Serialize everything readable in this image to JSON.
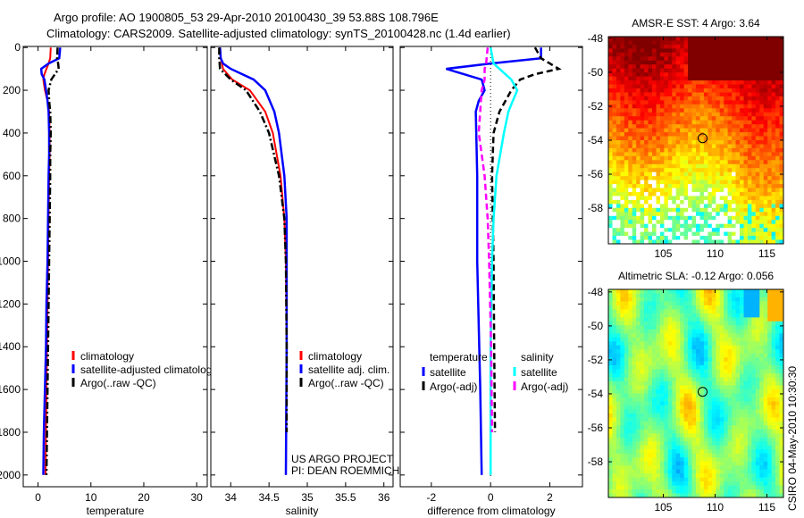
{
  "title": {
    "line1": "Argo profile: AO 1900805_53 29-Apr-2010 20100430_39 53.88S 108.796E",
    "line2": "Climatology: CARS2009. Satellite-adjusted climatology: synTS_20100428.nc (1.4d earlier)"
  },
  "credit": {
    "line1": "US ARGO PROJECT",
    "line2": "PI: DEAN ROEMMICH"
  },
  "timestamp": "CSIRO 04-May-2010 10:30:30",
  "chart_data": [
    {
      "id": "temperature",
      "type": "line",
      "xlabel": "temperature",
      "ylabel": "",
      "xlim": [
        -2.8,
        32
      ],
      "ylim": [
        -5,
        2055
      ],
      "y_reversed": true,
      "xticks": [
        "0",
        "10",
        "20",
        "30"
      ],
      "xtick_values": [
        0,
        10,
        20,
        30
      ],
      "yticks": [
        "0",
        "200",
        "400",
        "600",
        "800",
        "1000",
        "1200",
        "1400",
        "1600",
        "1800",
        "2000"
      ],
      "ytick_values": [
        0,
        200,
        400,
        600,
        800,
        1000,
        1200,
        1400,
        1600,
        1800,
        2000
      ],
      "legend": [
        "climatology",
        "satellite-adjusted climatolog",
        "Argo(..raw -QC)"
      ],
      "series": [
        {
          "name": "climatology",
          "color": "#ff0000",
          "style": "solid",
          "depth": [
            0,
            50,
            75,
            100,
            125,
            150,
            200,
            250,
            300,
            400,
            500,
            600,
            800,
            1000,
            1200,
            1400,
            1600,
            1800,
            2000
          ],
          "values": [
            2.4,
            2.3,
            2.0,
            1.6,
            1.2,
            1.0,
            1.3,
            1.8,
            2.1,
            2.2,
            2.2,
            2.1,
            2.0,
            1.9,
            1.8,
            1.7,
            1.6,
            1.5,
            1.4
          ]
        },
        {
          "name": "satellite-adjusted climatology",
          "color": "#0000ff",
          "style": "solid",
          "depth": [
            0,
            50,
            75,
            100,
            125,
            150,
            200,
            250,
            300,
            400,
            500,
            600,
            800,
            1000,
            1200,
            1400,
            1600,
            1800,
            2000
          ],
          "values": [
            4.2,
            4.0,
            2.0,
            0.6,
            0.7,
            1.2,
            1.5,
            1.8,
            2.0,
            2.1,
            2.1,
            2.0,
            1.9,
            1.8,
            1.6,
            1.5,
            1.3,
            1.1,
            1.0
          ]
        },
        {
          "name": "Argo(..raw -QC)",
          "color": "#000000",
          "style": "dashdot",
          "depth": [
            0,
            50,
            75,
            100,
            125,
            150,
            200,
            250,
            300,
            400,
            500,
            600,
            800,
            1000,
            1200,
            1400,
            1600,
            1800,
            2000
          ],
          "values": [
            3.7,
            3.6,
            3.8,
            3.9,
            3.2,
            2.5,
            2.0,
            2.1,
            2.3,
            2.4,
            2.3,
            2.3,
            2.2,
            2.1,
            2.0,
            1.9,
            1.8,
            1.7,
            1.6
          ]
        }
      ]
    },
    {
      "id": "salinity",
      "type": "line",
      "xlabel": "salinity",
      "xlim": [
        33.74,
        36.12
      ],
      "ylim": [
        -5,
        2055
      ],
      "y_reversed": true,
      "xticks": [
        "34",
        "34.5",
        "35",
        "35.5",
        "36"
      ],
      "xtick_values": [
        34,
        34.5,
        35,
        35.5,
        36
      ],
      "legend": [
        "climatology",
        "satellite adj. clim.",
        "Argo(..raw -QC)"
      ],
      "series": [
        {
          "name": "climatology",
          "color": "#ff0000",
          "style": "solid",
          "depth": [
            0,
            50,
            100,
            150,
            200,
            300,
            400,
            600,
            800,
            1000,
            1400,
            2000
          ],
          "values": [
            33.86,
            33.87,
            33.9,
            34.02,
            34.25,
            34.45,
            34.55,
            34.65,
            34.7,
            34.72,
            34.73,
            34.72
          ]
        },
        {
          "name": "satellite adj. clim.",
          "color": "#0000ff",
          "style": "solid",
          "depth": [
            0,
            50,
            75,
            100,
            150,
            200,
            300,
            400,
            600,
            800,
            1000,
            1400,
            2000
          ],
          "values": [
            33.86,
            33.87,
            33.9,
            34.0,
            34.3,
            34.45,
            34.57,
            34.63,
            34.7,
            34.73,
            34.73,
            34.73,
            34.72
          ]
        },
        {
          "name": "Argo(..raw -QC)",
          "color": "#000000",
          "style": "dashdot",
          "depth": [
            0,
            50,
            100,
            150,
            200,
            300,
            400,
            600,
            800,
            1000,
            1400,
            1800
          ],
          "values": [
            33.85,
            33.85,
            33.86,
            34.0,
            34.2,
            34.38,
            34.5,
            34.63,
            34.7,
            34.72,
            34.73,
            34.73
          ]
        }
      ]
    },
    {
      "id": "difference",
      "type": "line",
      "xlabel": "difference from climatology",
      "xlim": [
        -3.05,
        3.1
      ],
      "ylim": [
        -5,
        2055
      ],
      "y_reversed": true,
      "xticks": [
        "-2",
        "0",
        "2"
      ],
      "xtick_values": [
        -2,
        0,
        2
      ],
      "legend_headers": [
        "temperature",
        "salinity"
      ],
      "legend": [
        "satellite",
        "Argo(-adj)",
        "satellite",
        "Argo(-adj)"
      ],
      "series": [
        {
          "name": "temperature satellite",
          "color": "#0000ff",
          "style": "solid",
          "depth": [
            0,
            50,
            75,
            100,
            125,
            150,
            200,
            250,
            300,
            600,
            1000,
            1600,
            2000
          ],
          "values": [
            1.7,
            1.7,
            0.0,
            -1.5,
            -0.9,
            -0.3,
            -0.2,
            -0.4,
            -0.5,
            -0.45,
            -0.45,
            -0.35,
            -0.3
          ]
        },
        {
          "name": "temperature Argo(-adj)",
          "color": "#000000",
          "style": "dashed",
          "depth": [
            0,
            50,
            75,
            100,
            125,
            150,
            200,
            300,
            400,
            600,
            1000,
            1400,
            1800
          ],
          "values": [
            1.5,
            1.7,
            2.0,
            2.3,
            1.5,
            1.0,
            0.7,
            0.3,
            0.1,
            0.05,
            0.1,
            0.12,
            0.15
          ]
        },
        {
          "name": "salinity satellite",
          "color": "#00ffff",
          "style": "solid",
          "depth": [
            0,
            75,
            100,
            150,
            200,
            250,
            300,
            400,
            600,
            800,
            1000,
            1400,
            2000
          ],
          "values": [
            0.0,
            0.1,
            0.3,
            0.7,
            0.9,
            0.75,
            0.6,
            0.45,
            0.2,
            0.1,
            0.05,
            0.0,
            0.0
          ]
        },
        {
          "name": "salinity Argo(-adj)",
          "color": "#ff00ff",
          "style": "dashed",
          "depth": [
            0,
            75,
            100,
            150,
            200,
            400,
            600,
            800,
            1000,
            1400,
            1800
          ],
          "values": [
            -0.1,
            -0.15,
            -0.2,
            -0.2,
            -0.3,
            -0.4,
            -0.2,
            -0.1,
            -0.05,
            0.02,
            0.05
          ]
        }
      ]
    },
    {
      "id": "sst-map",
      "type": "heatmap",
      "title": "AMSR-E SST: 4 Argo: 3.64",
      "xlim": [
        99.7,
        116.6
      ],
      "ylim": [
        -60.1,
        -47.9
      ],
      "xticks": [
        "105",
        "110",
        "115"
      ],
      "xtick_values": [
        105,
        110,
        115
      ],
      "yticks": [
        "-48",
        "-50",
        "-52",
        "-54",
        "-56",
        "-58"
      ],
      "ytick_values": [
        -48,
        -50,
        -52,
        -54,
        -56,
        -58
      ],
      "argo_position": {
        "lon": 108.796,
        "lat": -53.88
      }
    },
    {
      "id": "sla-map",
      "type": "heatmap",
      "title": "Altimetric SLA: -0.12 Argo: 0.056",
      "xlim": [
        99.7,
        116.6
      ],
      "ylim": [
        -60.1,
        -47.85
      ],
      "xticks": [
        "105",
        "110",
        "115"
      ],
      "xtick_values": [
        105,
        110,
        115
      ],
      "yticks": [
        "-48",
        "-50",
        "-52",
        "-54",
        "-56",
        "-58"
      ],
      "ytick_values": [
        -48,
        -50,
        -52,
        -54,
        -56,
        -58
      ],
      "argo_position": {
        "lon": 108.796,
        "lat": -53.88
      }
    }
  ]
}
